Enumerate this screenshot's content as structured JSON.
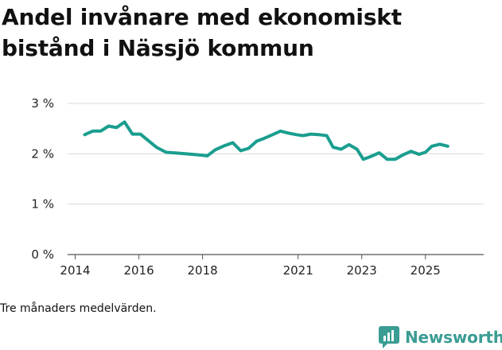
{
  "title": "Andel invånare med ekonomiskt bistånd i Nässjö kommun",
  "footnote": "Tre månaders medelvärden.",
  "brand": {
    "name": "Newsworthy",
    "icon": "newsworthy-logo-icon",
    "color": "#3a9c92"
  },
  "colors": {
    "line": "#1a9e8f",
    "grid": "#d9d9d9",
    "axis": "#555555"
  },
  "chart_data": {
    "type": "line",
    "title": "Andel invånare med ekonomiskt bistånd i Nässjö kommun",
    "xlabel": "",
    "ylabel": "",
    "xlim": [
      2014,
      2025.6
    ],
    "ylim": [
      0,
      3
    ],
    "x_ticks": [
      2014,
      2016,
      2018,
      2021,
      2023,
      2025
    ],
    "y_ticks": [
      {
        "value": 0,
        "label": "0 %"
      },
      {
        "value": 1,
        "label": "1 %"
      },
      {
        "value": 2,
        "label": "2 %"
      },
      {
        "value": 3,
        "label": "3 %"
      }
    ],
    "grid": true,
    "series": [
      {
        "name": "Andel invånare med ekonomiskt bistånd",
        "points": [
          [
            2014.3,
            2.38
          ],
          [
            2014.55,
            2.45
          ],
          [
            2014.8,
            2.45
          ],
          [
            2015.05,
            2.55
          ],
          [
            2015.3,
            2.52
          ],
          [
            2015.55,
            2.63
          ],
          [
            2015.8,
            2.39
          ],
          [
            2016.05,
            2.39
          ],
          [
            2016.3,
            2.26
          ],
          [
            2016.55,
            2.13
          ],
          [
            2016.85,
            2.03
          ],
          [
            2017.3,
            2.01
          ],
          [
            2017.85,
            1.98
          ],
          [
            2018.15,
            1.96
          ],
          [
            2018.4,
            2.08
          ],
          [
            2018.65,
            2.15
          ],
          [
            2018.95,
            2.22
          ],
          [
            2019.2,
            2.06
          ],
          [
            2019.45,
            2.11
          ],
          [
            2019.7,
            2.25
          ],
          [
            2019.95,
            2.31
          ],
          [
            2020.2,
            2.38
          ],
          [
            2020.45,
            2.45
          ],
          [
            2020.7,
            2.41
          ],
          [
            2020.95,
            2.38
          ],
          [
            2021.15,
            2.36
          ],
          [
            2021.4,
            2.39
          ],
          [
            2021.65,
            2.38
          ],
          [
            2021.9,
            2.36
          ],
          [
            2022.1,
            2.13
          ],
          [
            2022.35,
            2.09
          ],
          [
            2022.6,
            2.18
          ],
          [
            2022.85,
            2.09
          ],
          [
            2023.05,
            1.89
          ],
          [
            2023.3,
            1.95
          ],
          [
            2023.55,
            2.02
          ],
          [
            2023.8,
            1.89
          ],
          [
            2024.05,
            1.89
          ],
          [
            2024.3,
            1.98
          ],
          [
            2024.55,
            2.05
          ],
          [
            2024.8,
            1.99
          ],
          [
            2025.0,
            2.03
          ],
          [
            2025.2,
            2.15
          ],
          [
            2025.45,
            2.19
          ],
          [
            2025.7,
            2.15
          ]
        ]
      }
    ]
  }
}
